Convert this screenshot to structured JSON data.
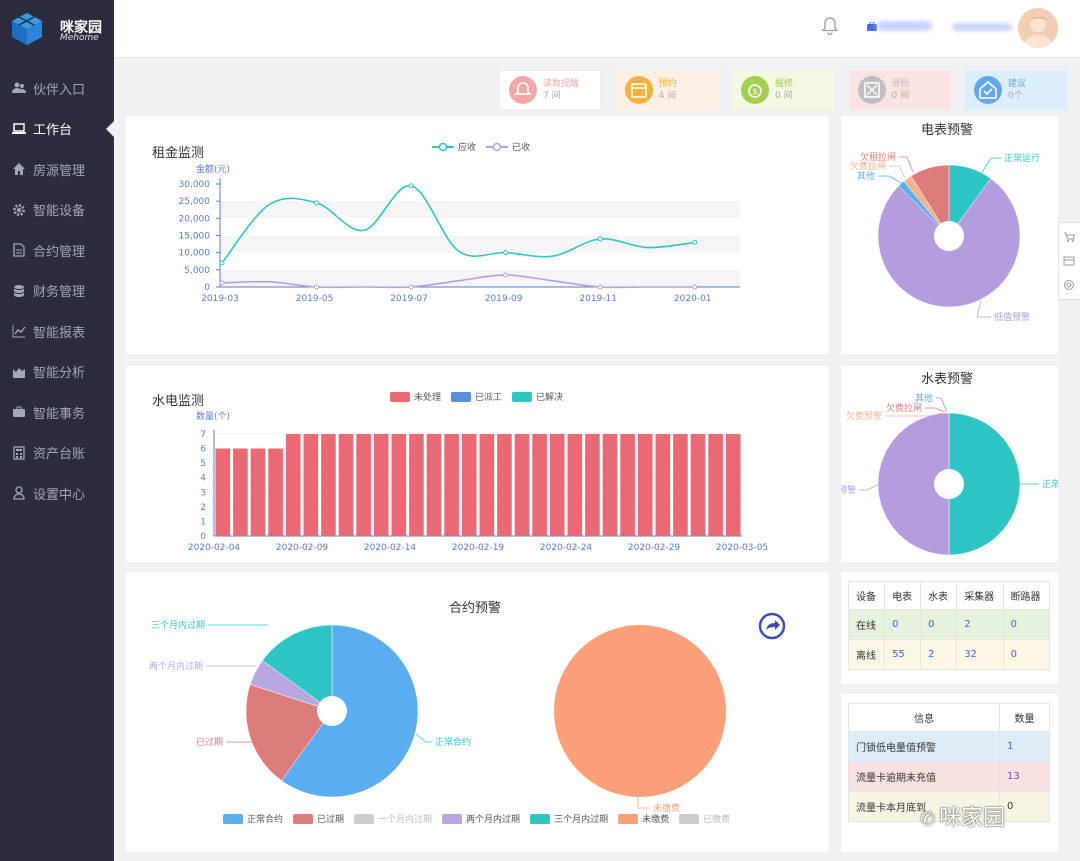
{
  "brand": {
    "name_cn": "咪家园",
    "name_en": "Mehome"
  },
  "nav": [
    {
      "label": "伙伴入口",
      "icon": "users-icon"
    },
    {
      "label": "工作台",
      "icon": "laptop-icon",
      "active": true
    },
    {
      "label": "房源管理",
      "icon": "home-icon"
    },
    {
      "label": "智能设备",
      "icon": "gear-icon"
    },
    {
      "label": "合约管理",
      "icon": "file-icon"
    },
    {
      "label": "财务管理",
      "icon": "database-icon"
    },
    {
      "label": "智能报表",
      "icon": "line-chart-icon"
    },
    {
      "label": "智能分析",
      "icon": "area-chart-icon"
    },
    {
      "label": "智能事务",
      "icon": "briefcase-icon"
    },
    {
      "label": "资产台账",
      "icon": "calculator-icon"
    },
    {
      "label": "设置中心",
      "icon": "user-icon"
    }
  ],
  "stats": [
    {
      "label": "读数提醒",
      "count": "7 间",
      "color": "#f2a7a7",
      "bg": "#ffffff"
    },
    {
      "label": "预约",
      "count": "4 间",
      "color": "#f6b23a",
      "bg": "#fcefe3"
    },
    {
      "label": "报修",
      "count": "0 间",
      "color": "#a3cf4f",
      "bg": "#f2f8e1"
    },
    {
      "label": "退租",
      "count": "0 间",
      "color": "#bfbfbf",
      "bg": "#fbe3e3"
    },
    {
      "label": "建议",
      "count": "0个",
      "color": "#64a7e8",
      "bg": "#dceefc"
    }
  ],
  "rent": {
    "title": "租金监测",
    "unit": "金额(元)",
    "legend": [
      "应收",
      "已收"
    ],
    "chart_data": {
      "type": "line",
      "x": [
        "2019-03",
        "2019-04",
        "2019-05",
        "2019-06",
        "2019-07",
        "2019-08",
        "2019-09",
        "2019-10",
        "2019-11",
        "2019-12",
        "2020-01",
        "2020-02"
      ],
      "xticks": [
        "2019-03",
        "2019-05",
        "2019-07",
        "2019-09",
        "2019-11",
        "2020-01"
      ],
      "yticks": [
        "0",
        "5,000",
        "10,000",
        "15,000",
        "20,000",
        "25,000",
        "30,000"
      ],
      "ylim": [
        0,
        30000
      ],
      "series": [
        {
          "name": "应收",
          "color": "#2fc4c4",
          "values": [
            7000,
            24000,
            24500,
            16500,
            29500,
            10500,
            10000,
            9000,
            14000,
            11500,
            13000,
            null
          ]
        },
        {
          "name": "已收",
          "color": "#b5a1d8",
          "values": [
            1200,
            1500,
            0,
            0,
            0,
            1800,
            3500,
            1800,
            0,
            0,
            0,
            null
          ]
        }
      ]
    }
  },
  "utility": {
    "title": "水电监测",
    "unit": "数量(个)",
    "legend": [
      "未处理",
      "已派工",
      "已解决"
    ],
    "legend_colors": [
      "#e96a74",
      "#5a8fd9",
      "#2fc4c4"
    ],
    "chart_data": {
      "type": "bar",
      "xticks": [
        "2020-02-04",
        "2020-02-09",
        "2020-02-14",
        "2020-02-19",
        "2020-02-24",
        "2020-02-29",
        "2020-03-05"
      ],
      "yticks": [
        "0",
        "1",
        "2",
        "3",
        "4",
        "5",
        "6",
        "7"
      ],
      "ylim": [
        0,
        7
      ],
      "series": [
        {
          "name": "未处理",
          "color": "#e96a74",
          "values": [
            6,
            6,
            6,
            6,
            7,
            7,
            7,
            7,
            7,
            7,
            7,
            7,
            7,
            7,
            7,
            7,
            7,
            7,
            7,
            7,
            7,
            7,
            7,
            7,
            7,
            7,
            7,
            7,
            7,
            7
          ]
        }
      ]
    }
  },
  "contract": {
    "title": "合约预警",
    "legend": [
      {
        "label": "正常合约",
        "color": "#5aaeef"
      },
      {
        "label": "已过期",
        "color": "#dc7b7b"
      },
      {
        "label": "一个月内过期",
        "color": "#cccccc"
      },
      {
        "label": "两个月内过期",
        "color": "#b9a7e2"
      },
      {
        "label": "三个月内过期",
        "color": "#2fc4c4"
      },
      {
        "label": "未缴费",
        "color": "#fca07a"
      },
      {
        "label": "已缴费",
        "color": "#cccccc"
      }
    ],
    "labels": {
      "normal": "正常合约",
      "expired": "已过期",
      "two": "两个月内过期",
      "three": "三个月内过期",
      "unpaid": "未缴费"
    },
    "chart_data": [
      {
        "type": "pie",
        "values": {
          "正常合约": 60,
          "已过期": 20,
          "两个月内过期": 5,
          "三个月内过期": 15
        }
      },
      {
        "type": "pie",
        "values": {
          "未缴费": 100
        }
      }
    ]
  },
  "meter": {
    "title": "电表预警",
    "labels": {
      "normal": "正常运行",
      "arrears": "欠租拉闸",
      "owe": "欠费拉闸",
      "other": "其他",
      "low": "低值预警"
    },
    "chart_data": {
      "type": "pie",
      "values": {
        "正常运行": 10,
        "欠租拉闸": 9,
        "欠费拉闸": 2,
        "其他": 1.5,
        "低值预警": 77.5
      }
    }
  },
  "water": {
    "title": "水表预警",
    "labels": {
      "other": "其他",
      "arrears": "欠费拉闸",
      "owe": "欠费预警",
      "low": "预警",
      "normal": "正常"
    },
    "chart_data": {
      "type": "pie",
      "values": {
        "正常": 50,
        "低值预警": 50
      }
    }
  },
  "device_table": {
    "headers": [
      "设备",
      "电表",
      "水表",
      "采集器",
      "断路器"
    ],
    "rows": [
      [
        "在线",
        "0",
        "0",
        "2",
        "0"
      ],
      [
        "离线",
        "55",
        "2",
        "32",
        "0"
      ]
    ]
  },
  "info_table": {
    "headers": [
      "信息",
      "数量"
    ],
    "rows": [
      [
        "门锁低电量值预警",
        "1"
      ],
      [
        "流量卡逾期未充值",
        "13"
      ],
      [
        "流量卡本月底到",
        "0"
      ]
    ]
  },
  "watermark": "咪家园"
}
